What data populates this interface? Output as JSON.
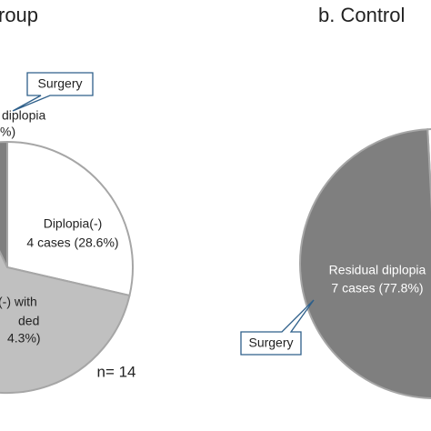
{
  "chart_data": [
    {
      "type": "pie",
      "title": "roup",
      "values": [
        28.6,
        64.3,
        7.1
      ],
      "colors": [
        "#ffffff",
        "#c0c0c0",
        "#7f7f7f"
      ],
      "labels": [
        [
          "Diplopia(-)",
          "4 cases (28.6%)"
        ],
        [
          "(-) with",
          "ded",
          "4.3%)"
        ],
        [
          "diplopia",
          "%)"
        ]
      ],
      "annotations": [
        "Surgery",
        "n= 14"
      ]
    },
    {
      "type": "pie",
      "title": "b.  Control",
      "values": [
        22.2,
        77.8
      ],
      "colors": [
        "#ffffff",
        "#7f7f7f"
      ],
      "labels": [
        [],
        [
          "Residual diplopia",
          "7 cases (77.8%)"
        ]
      ],
      "annotations": [
        "Surgery"
      ]
    }
  ]
}
